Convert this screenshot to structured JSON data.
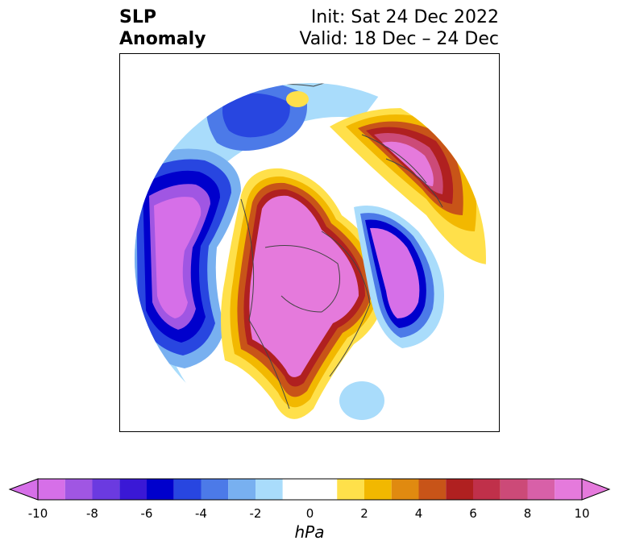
{
  "title": {
    "left_line1": "SLP",
    "left_line2": "Anomaly",
    "right_line1": "Init: Sat 24 Dec 2022",
    "right_line2": "Valid: 18 Dec – 24 Dec"
  },
  "colorbar": {
    "units": "hPa",
    "ticks": [
      "-10",
      "-8",
      "-6",
      "-4",
      "-2",
      "0",
      "2",
      "4",
      "6",
      "8",
      "10"
    ],
    "bins": [
      {
        "low": -10,
        "high": -9,
        "color": "#d66fe8"
      },
      {
        "low": -9,
        "high": -8,
        "color": "#a056e3"
      },
      {
        "low": -8,
        "high": -7,
        "color": "#6b3ae0"
      },
      {
        "low": -7,
        "high": -6,
        "color": "#3a18d6"
      },
      {
        "low": -6,
        "high": -5,
        "color": "#0000cc"
      },
      {
        "low": -5,
        "high": -4,
        "color": "#2846e0"
      },
      {
        "low": -4,
        "high": -3,
        "color": "#4c7ae8"
      },
      {
        "low": -3,
        "high": -2,
        "color": "#78b0f0"
      },
      {
        "low": -2,
        "high": -1,
        "color": "#a9dcfb"
      },
      {
        "low": -1,
        "high": 1,
        "color": "#ffffff"
      },
      {
        "low": 1,
        "high": 2,
        "color": "#ffe04a"
      },
      {
        "low": 2,
        "high": 3,
        "color": "#f2b800"
      },
      {
        "low": 3,
        "high": 4,
        "color": "#e08a10"
      },
      {
        "low": 4,
        "high": 5,
        "color": "#c85418"
      },
      {
        "low": 5,
        "high": 6,
        "color": "#b02020"
      },
      {
        "low": 6,
        "high": 7,
        "color": "#c0304a"
      },
      {
        "low": 7,
        "high": 8,
        "color": "#cc4a78"
      },
      {
        "low": 8,
        "high": 9,
        "color": "#d860a8"
      },
      {
        "low": 9,
        "high": 10,
        "color": "#e57adc"
      }
    ],
    "under_color": "#d66fe8",
    "over_color": "#e57adc"
  }
}
